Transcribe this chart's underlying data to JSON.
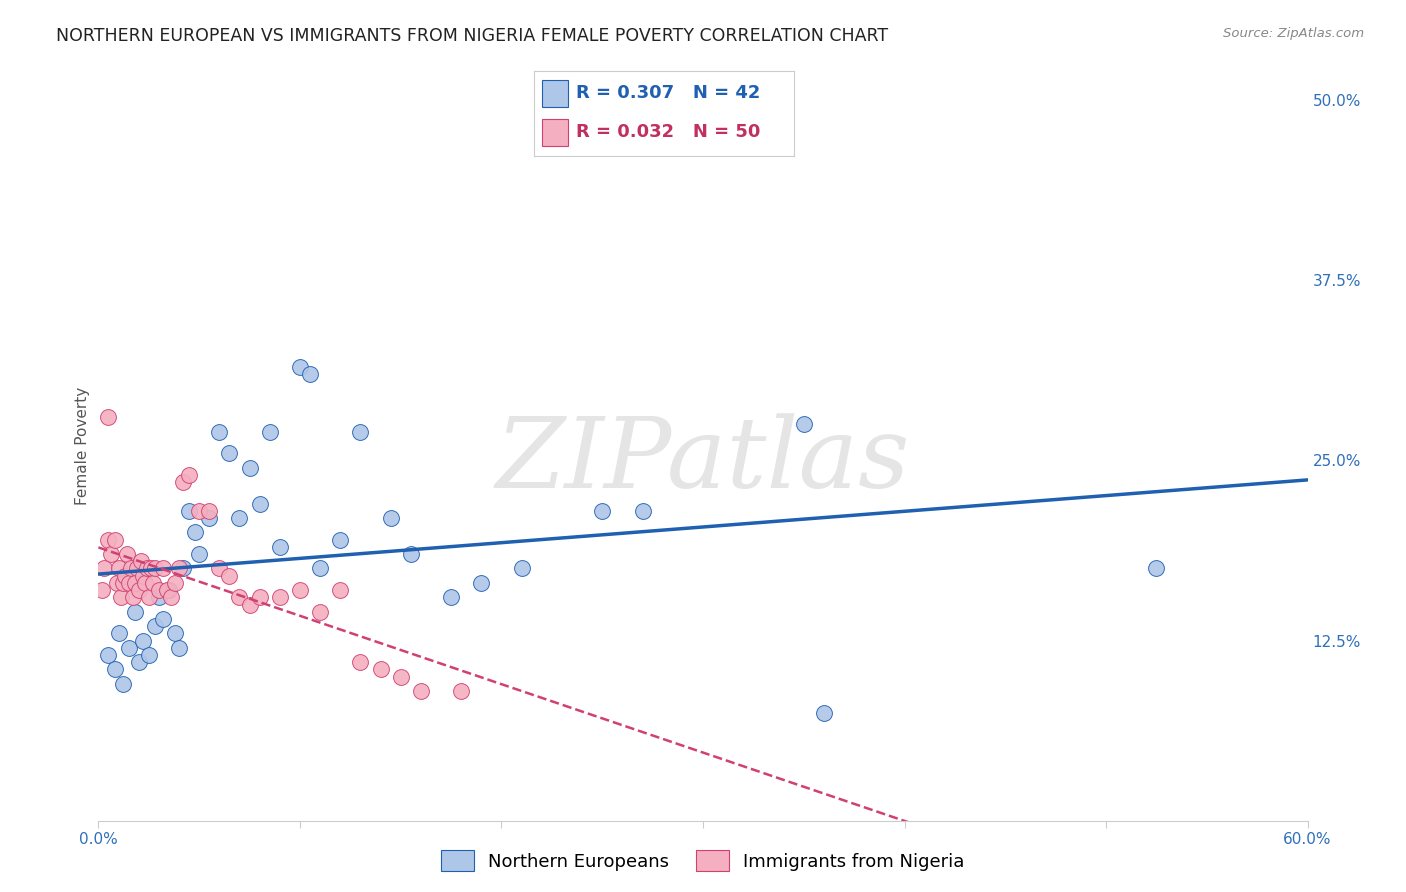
{
  "title": "NORTHERN EUROPEAN VS IMMIGRANTS FROM NIGERIA FEMALE POVERTY CORRELATION CHART",
  "source": "Source: ZipAtlas.com",
  "ylabel": "Female Poverty",
  "xlim": [
    0.0,
    0.6
  ],
  "ylim": [
    0.0,
    0.52
  ],
  "yticks_right": [
    0.125,
    0.25,
    0.375,
    0.5
  ],
  "yticklabels_right": [
    "12.5%",
    "25.0%",
    "37.5%",
    "50.0%"
  ],
  "blue_R": 0.307,
  "blue_N": 42,
  "pink_R": 0.032,
  "pink_N": 50,
  "legend_label1": "Northern Europeans",
  "legend_label2": "Immigrants from Nigeria",
  "blue_color": "#aec6e8",
  "pink_color": "#f4afc0",
  "blue_line_color": "#2060b0",
  "pink_line_color": "#d04070",
  "blue_scatter": [
    [
      0.005,
      0.115
    ],
    [
      0.008,
      0.105
    ],
    [
      0.01,
      0.13
    ],
    [
      0.012,
      0.095
    ],
    [
      0.015,
      0.12
    ],
    [
      0.018,
      0.145
    ],
    [
      0.02,
      0.11
    ],
    [
      0.022,
      0.125
    ],
    [
      0.025,
      0.115
    ],
    [
      0.028,
      0.135
    ],
    [
      0.03,
      0.155
    ],
    [
      0.032,
      0.14
    ],
    [
      0.035,
      0.16
    ],
    [
      0.038,
      0.13
    ],
    [
      0.04,
      0.12
    ],
    [
      0.042,
      0.175
    ],
    [
      0.045,
      0.215
    ],
    [
      0.048,
      0.2
    ],
    [
      0.05,
      0.185
    ],
    [
      0.055,
      0.21
    ],
    [
      0.06,
      0.27
    ],
    [
      0.065,
      0.255
    ],
    [
      0.07,
      0.21
    ],
    [
      0.075,
      0.245
    ],
    [
      0.08,
      0.22
    ],
    [
      0.085,
      0.27
    ],
    [
      0.09,
      0.19
    ],
    [
      0.1,
      0.315
    ],
    [
      0.105,
      0.31
    ],
    [
      0.11,
      0.175
    ],
    [
      0.12,
      0.195
    ],
    [
      0.13,
      0.27
    ],
    [
      0.145,
      0.21
    ],
    [
      0.155,
      0.185
    ],
    [
      0.175,
      0.155
    ],
    [
      0.19,
      0.165
    ],
    [
      0.21,
      0.175
    ],
    [
      0.25,
      0.215
    ],
    [
      0.27,
      0.215
    ],
    [
      0.35,
      0.275
    ],
    [
      0.525,
      0.175
    ],
    [
      0.36,
      0.075
    ]
  ],
  "pink_scatter": [
    [
      0.002,
      0.16
    ],
    [
      0.003,
      0.175
    ],
    [
      0.005,
      0.195
    ],
    [
      0.006,
      0.185
    ],
    [
      0.008,
      0.195
    ],
    [
      0.009,
      0.165
    ],
    [
      0.01,
      0.175
    ],
    [
      0.011,
      0.155
    ],
    [
      0.012,
      0.165
    ],
    [
      0.013,
      0.17
    ],
    [
      0.014,
      0.185
    ],
    [
      0.015,
      0.165
    ],
    [
      0.016,
      0.175
    ],
    [
      0.017,
      0.155
    ],
    [
      0.018,
      0.165
    ],
    [
      0.019,
      0.175
    ],
    [
      0.02,
      0.16
    ],
    [
      0.021,
      0.18
    ],
    [
      0.022,
      0.17
    ],
    [
      0.023,
      0.165
    ],
    [
      0.024,
      0.175
    ],
    [
      0.025,
      0.155
    ],
    [
      0.026,
      0.175
    ],
    [
      0.027,
      0.165
    ],
    [
      0.028,
      0.175
    ],
    [
      0.03,
      0.16
    ],
    [
      0.032,
      0.175
    ],
    [
      0.034,
      0.16
    ],
    [
      0.036,
      0.155
    ],
    [
      0.038,
      0.165
    ],
    [
      0.04,
      0.175
    ],
    [
      0.042,
      0.235
    ],
    [
      0.045,
      0.24
    ],
    [
      0.05,
      0.215
    ],
    [
      0.055,
      0.215
    ],
    [
      0.06,
      0.175
    ],
    [
      0.065,
      0.17
    ],
    [
      0.07,
      0.155
    ],
    [
      0.075,
      0.15
    ],
    [
      0.08,
      0.155
    ],
    [
      0.09,
      0.155
    ],
    [
      0.1,
      0.16
    ],
    [
      0.11,
      0.145
    ],
    [
      0.12,
      0.16
    ],
    [
      0.13,
      0.11
    ],
    [
      0.14,
      0.105
    ],
    [
      0.15,
      0.1
    ],
    [
      0.16,
      0.09
    ],
    [
      0.18,
      0.09
    ],
    [
      0.005,
      0.28
    ]
  ],
  "background_color": "#ffffff",
  "grid_color": "#d8d8d8",
  "watermark_text": "ZIPatlas",
  "title_fontsize": 12.5,
  "axis_label_fontsize": 11,
  "tick_fontsize": 11,
  "legend_fontsize": 13
}
